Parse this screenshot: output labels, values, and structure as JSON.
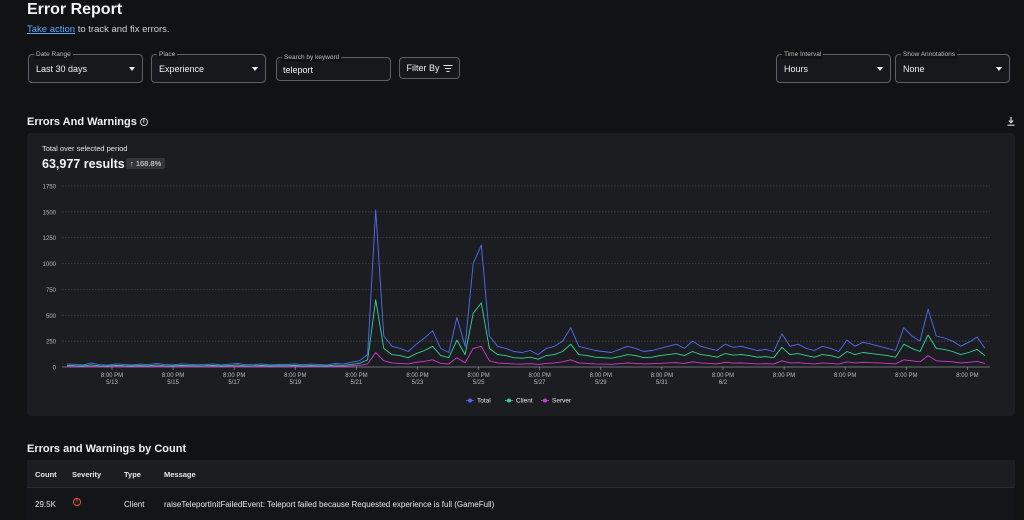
{
  "page": {
    "title": "Error Report",
    "subtitle_link": "Take action",
    "subtitle_rest": " to track and fix errors."
  },
  "filters": {
    "date_range": {
      "label": "Date Range",
      "value": "Last 30 days"
    },
    "place": {
      "label": "Place",
      "value": "Experience"
    },
    "search": {
      "label": "Search by keyword",
      "value": "teleport"
    },
    "filter_by": "Filter By",
    "time_interval": {
      "label": "Time Interval",
      "value": "Hours"
    },
    "annotations": {
      "label": "Show Annotations",
      "value": "None"
    }
  },
  "errors_section": {
    "title": "Errors And Warnings",
    "total_label": "Total over selected period",
    "results": "63,977 results",
    "change": "↑ 168.8%"
  },
  "colors": {
    "total": "#4f6ef7",
    "client": "#35d39a",
    "server": "#d43ad8"
  },
  "chart_data": {
    "type": "line",
    "x_ticks": [
      [
        "8:00 PM",
        "5/13"
      ],
      [
        "8:00 PM",
        "5/15"
      ],
      [
        "8:00 PM",
        "5/17"
      ],
      [
        "8:00 PM",
        "5/19"
      ],
      [
        "8:00 PM",
        "5/21"
      ],
      [
        "8:00 PM",
        "5/23"
      ],
      [
        "8:00 PM",
        "5/25"
      ],
      [
        "8:00 PM",
        "5/27"
      ],
      [
        "8:00 PM",
        "5/29"
      ],
      [
        "8:00 PM",
        "5/31"
      ],
      [
        "8:00 PM",
        "6/2"
      ],
      [
        "8:00 PM",
        ""
      ],
      [
        "8:00 PM",
        ""
      ],
      [
        "8:00 PM",
        ""
      ],
      [
        "8:00 PM",
        ""
      ]
    ],
    "y_ticks": [
      0,
      250,
      500,
      750,
      1000,
      1250,
      1500,
      1750
    ],
    "ylim": [
      0,
      1750
    ],
    "legend_position": "bottom",
    "grid": true,
    "series": [
      {
        "name": "Total",
        "values": [
          30,
          25,
          20,
          40,
          22,
          18,
          30,
          25,
          20,
          28,
          22,
          35,
          25,
          20,
          30,
          26,
          22,
          24,
          30,
          20,
          28,
          35,
          22,
          25,
          30,
          20,
          26,
          24,
          30,
          22,
          28,
          25,
          20,
          35,
          30,
          45,
          60,
          120,
          1520,
          300,
          200,
          180,
          150,
          220,
          280,
          350,
          180,
          140,
          480,
          200,
          1000,
          1180,
          300,
          200,
          180,
          150,
          140,
          160,
          120,
          180,
          200,
          250,
          380,
          200,
          180,
          160,
          150,
          140,
          170,
          200,
          180,
          150,
          160,
          180,
          200,
          220,
          180,
          250,
          200,
          180,
          160,
          220,
          190,
          200,
          180,
          160,
          170,
          150,
          320,
          200,
          220,
          180,
          160,
          200,
          180,
          150,
          260,
          200,
          240,
          220,
          200,
          180,
          160,
          380,
          300,
          250,
          560,
          300,
          280,
          250,
          200,
          240,
          290,
          180
        ]
      },
      {
        "name": "Client",
        "values": [
          15,
          12,
          10,
          20,
          11,
          9,
          15,
          12,
          10,
          14,
          11,
          18,
          12,
          10,
          15,
          13,
          11,
          12,
          15,
          10,
          14,
          18,
          11,
          12,
          15,
          10,
          13,
          12,
          15,
          11,
          14,
          12,
          10,
          18,
          15,
          25,
          35,
          70,
          650,
          180,
          120,
          110,
          90,
          130,
          160,
          200,
          110,
          90,
          260,
          120,
          520,
          620,
          180,
          120,
          110,
          90,
          85,
          95,
          75,
          110,
          120,
          150,
          220,
          120,
          110,
          95,
          90,
          85,
          100,
          120,
          110,
          90,
          95,
          110,
          120,
          130,
          110,
          150,
          120,
          110,
          95,
          130,
          115,
          120,
          110,
          95,
          100,
          90,
          190,
          120,
          130,
          110,
          95,
          120,
          110,
          90,
          150,
          120,
          140,
          130,
          120,
          110,
          95,
          220,
          180,
          150,
          310,
          180,
          170,
          150,
          120,
          140,
          170,
          110
        ]
      },
      {
        "name": "Server",
        "values": [
          5,
          4,
          3,
          6,
          4,
          3,
          5,
          4,
          3,
          5,
          4,
          6,
          4,
          3,
          5,
          4,
          4,
          4,
          5,
          3,
          5,
          6,
          4,
          4,
          5,
          3,
          4,
          4,
          5,
          4,
          5,
          4,
          3,
          6,
          5,
          10,
          15,
          30,
          140,
          60,
          40,
          35,
          30,
          45,
          55,
          70,
          35,
          30,
          90,
          40,
          180,
          200,
          60,
          40,
          35,
          30,
          28,
          32,
          25,
          35,
          40,
          50,
          70,
          40,
          35,
          30,
          28,
          26,
          32,
          40,
          35,
          30,
          32,
          35,
          40,
          42,
          35,
          50,
          40,
          35,
          30,
          45,
          38,
          40,
          35,
          30,
          32,
          28,
          60,
          40,
          42,
          35,
          30,
          40,
          35,
          28,
          50,
          40,
          45,
          42,
          40,
          35,
          30,
          70,
          60,
          50,
          110,
          60,
          55,
          50,
          40,
          45,
          55,
          35
        ]
      }
    ]
  },
  "table": {
    "title": "Errors and Warnings by Count",
    "headers": {
      "count": "Count",
      "severity": "Severity",
      "type": "Type",
      "message": "Message"
    },
    "rows": [
      {
        "count": "29.5K",
        "type": "Client",
        "message": "raiseTeleportInitFailedEvent: Teleport failed because Requested experience is full (GameFull)"
      }
    ]
  }
}
